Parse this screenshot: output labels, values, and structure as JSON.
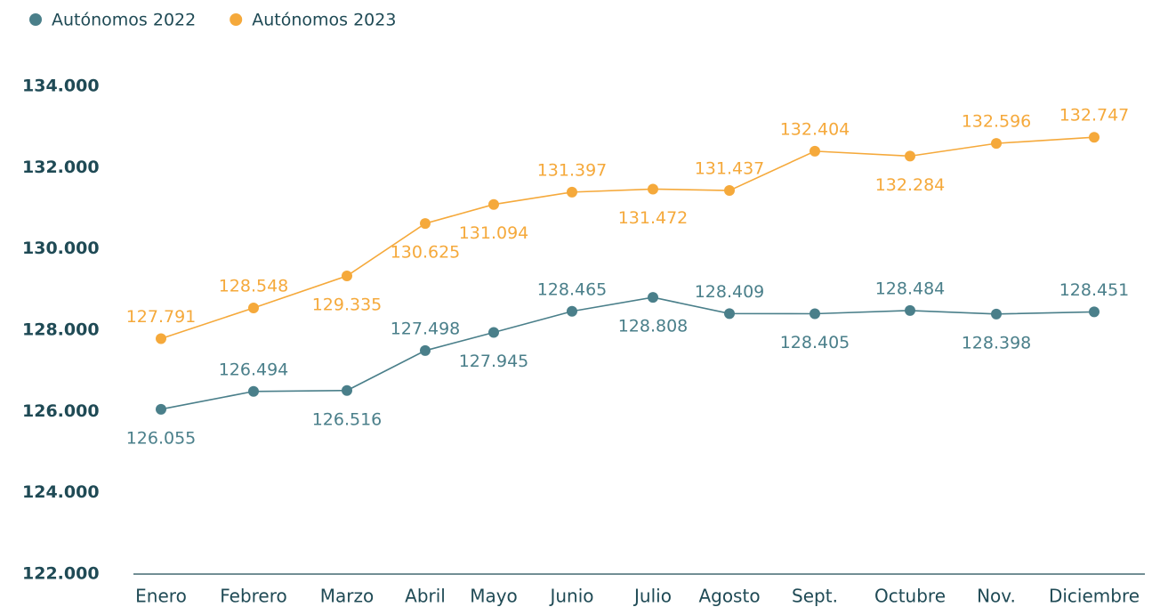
{
  "chart_data": {
    "type": "line",
    "categories": [
      "Enero",
      "Febrero",
      "Marzo",
      "Abril",
      "Mayo",
      "Junio",
      "Julio",
      "Agosto",
      "Sept.",
      "Octubre",
      "Nov.",
      "Diciembre"
    ],
    "series": [
      {
        "name": "Autónomos 2022",
        "color": "#4a7f8a",
        "values": [
          126055,
          126494,
          126516,
          127498,
          127945,
          128465,
          128808,
          128409,
          128405,
          128484,
          128398,
          128451
        ],
        "value_labels": [
          "126.055",
          "126.494",
          "126.516",
          "127.498",
          "127.945",
          "128.465",
          "128.808",
          "128.409",
          "128.405",
          "128.484",
          "128.398",
          "128.451"
        ]
      },
      {
        "name": "Autónomos 2023",
        "color": "#f5a93b",
        "values": [
          127791,
          128548,
          129335,
          130625,
          131094,
          131397,
          131472,
          131437,
          132404,
          132284,
          132596,
          132747
        ],
        "value_labels": [
          "127.791",
          "128.548",
          "129.335",
          "130.625",
          "131.094",
          "131.397",
          "131.472",
          "131.437",
          "132.404",
          "132.284",
          "132.596",
          "132.747"
        ]
      }
    ],
    "ylim": [
      122000,
      134000
    ],
    "yticks": [
      {
        "value": 122000,
        "label": "122.000"
      },
      {
        "value": 124000,
        "label": "124.000"
      },
      {
        "value": 126000,
        "label": "126.000"
      },
      {
        "value": 128000,
        "label": "128.000"
      },
      {
        "value": 130000,
        "label": "130.000"
      },
      {
        "value": 132000,
        "label": "132.000"
      },
      {
        "value": 134000,
        "label": "134.000"
      }
    ],
    "grid": false,
    "legend": "top-left"
  }
}
